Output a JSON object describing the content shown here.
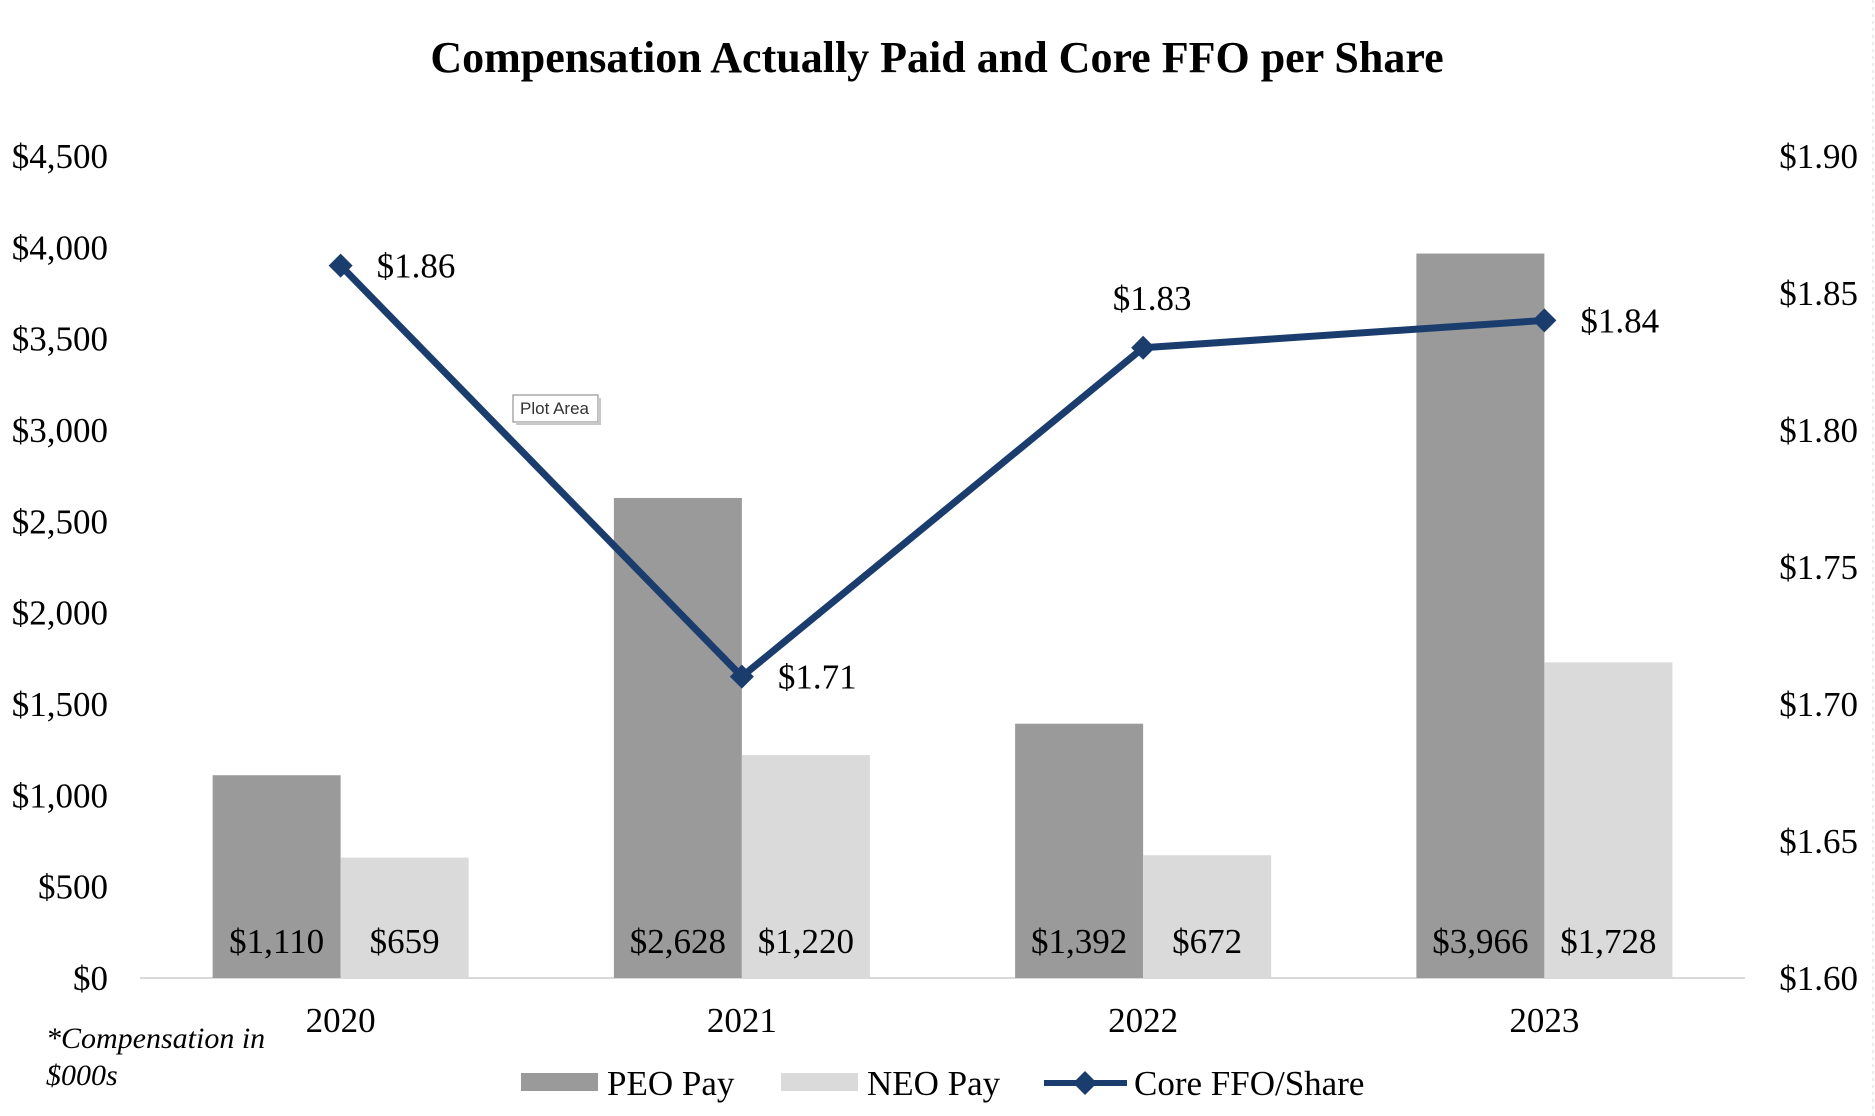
{
  "colors": {
    "peo_bar": "#9a9a9a",
    "neo_bar": "#dadada",
    "ffo_line": "#1a3d6e",
    "axis_line": "#d9d9d9"
  },
  "chart_data": {
    "type": "bar",
    "title": "Compensation Actually Paid and Core FFO per Share",
    "categories": [
      "2020",
      "2021",
      "2022",
      "2023"
    ],
    "series": [
      {
        "name": "PEO Pay",
        "kind": "bar",
        "axis": "left",
        "values": [
          1110,
          2628,
          1392,
          3966
        ],
        "labels": [
          "$1,110",
          "$2,628",
          "$1,392",
          "$3,966"
        ]
      },
      {
        "name": "NEO Pay",
        "kind": "bar",
        "axis": "left",
        "values": [
          659,
          1220,
          672,
          1728
        ],
        "labels": [
          "$659",
          "$1,220",
          "$672",
          "$1,728"
        ]
      },
      {
        "name": "Core FFO/Share",
        "kind": "line",
        "axis": "right",
        "marker": "diamond",
        "values": [
          1.86,
          1.71,
          1.83,
          1.84
        ],
        "labels": [
          "$1.86",
          "$1.71",
          "$1.83",
          "$1.84"
        ]
      }
    ],
    "y_left": {
      "range": [
        0,
        4500
      ],
      "ticks": [
        0,
        500,
        1000,
        1500,
        2000,
        2500,
        3000,
        3500,
        4000,
        4500
      ],
      "tick_labels": [
        "$0",
        "$500",
        "$1,000",
        "$1,500",
        "$2,000",
        "$2,500",
        "$3,000",
        "$3,500",
        "$4,000",
        "$4,500"
      ]
    },
    "y_right": {
      "range": [
        1.6,
        1.9
      ],
      "ticks": [
        1.6,
        1.65,
        1.7,
        1.75,
        1.8,
        1.85,
        1.9
      ],
      "tick_labels": [
        "$1.60",
        "$1.65",
        "$1.70",
        "$1.75",
        "$1.80",
        "$1.85",
        "$1.90"
      ]
    },
    "note": [
      "*Compensation in",
      "$000s"
    ],
    "legend_position": "bottom",
    "grid": false,
    "hover_tooltip": "Plot Area"
  }
}
